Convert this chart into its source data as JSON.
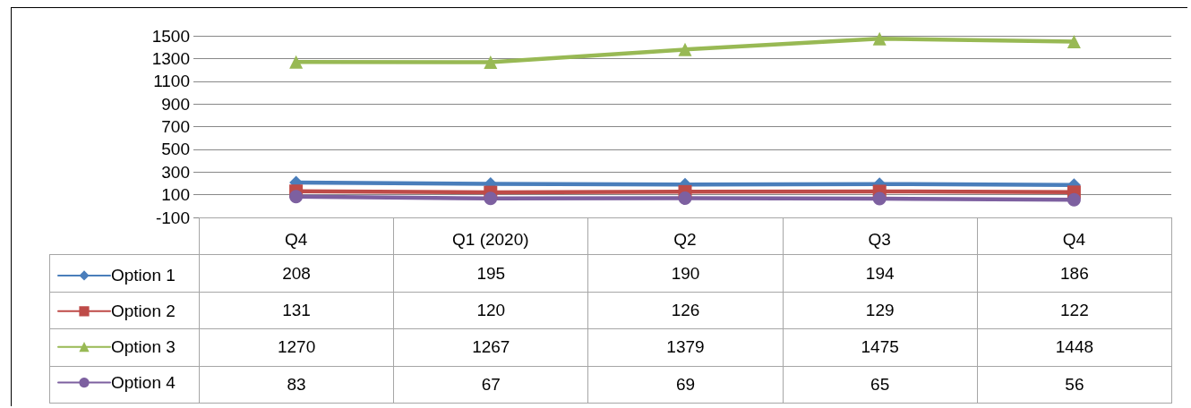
{
  "chart_data": {
    "type": "line",
    "categories": [
      "Q4",
      "Q1 (2020)",
      "Q2",
      "Q3",
      "Q4"
    ],
    "series": [
      {
        "name": "Option 1",
        "color": "#4a7ebb",
        "marker": "diamond",
        "values": [
          208,
          195,
          190,
          194,
          186
        ]
      },
      {
        "name": "Option 2",
        "color": "#be4b48",
        "marker": "square",
        "values": [
          131,
          120,
          126,
          129,
          122
        ]
      },
      {
        "name": "Option 3",
        "color": "#98b954",
        "marker": "triangle",
        "values": [
          1270,
          1267,
          1379,
          1475,
          1448
        ]
      },
      {
        "name": "Option 4",
        "color": "#7d60a0",
        "marker": "circle",
        "values": [
          83,
          67,
          69,
          65,
          56
        ]
      }
    ],
    "ylim": [
      -100,
      1500
    ],
    "yticks": [
      -100,
      100,
      300,
      500,
      700,
      900,
      1100,
      1300,
      1500
    ],
    "grid": "y",
    "legend": "bottom left",
    "data_labels": true,
    "line_style": "solid"
  }
}
